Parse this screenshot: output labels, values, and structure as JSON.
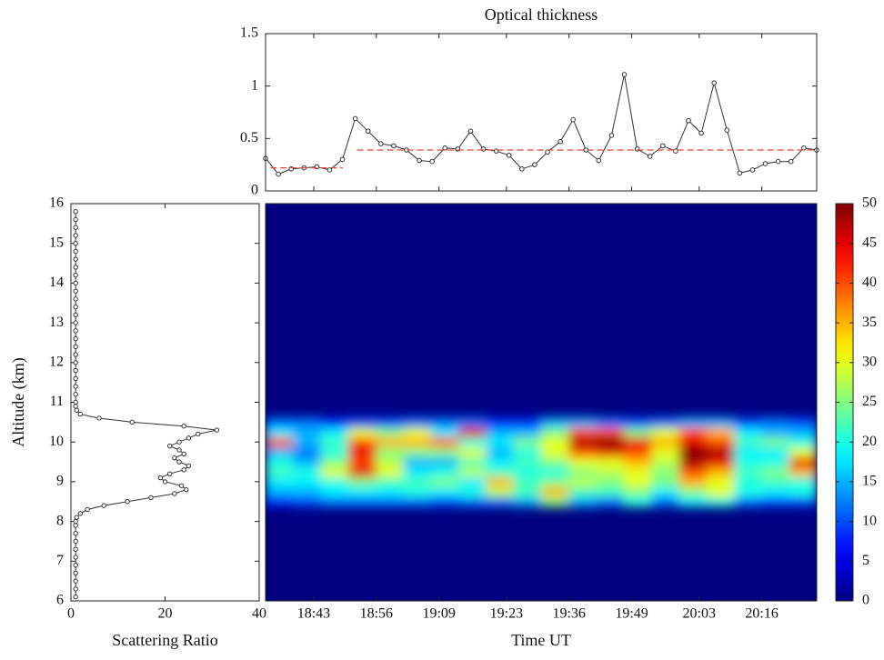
{
  "chart_data": [
    {
      "type": "line",
      "title": "Optical thickness",
      "x": [
        1113,
        1115.66,
        1118.32,
        1120.98,
        1123.64,
        1126.3,
        1128.96,
        1131.62,
        1134.28,
        1136.94,
        1139.6,
        1142.26,
        1144.92,
        1147.58,
        1150.24,
        1152.9,
        1155.56,
        1158.22,
        1160.88,
        1163.54,
        1166.2,
        1168.86,
        1171.52,
        1174.18,
        1176.84,
        1179.5,
        1182.16,
        1184.82,
        1187.48,
        1190.14,
        1192.8,
        1195.46,
        1198.12,
        1200.78,
        1203.44,
        1206.1,
        1208.76,
        1211.42,
        1214.08,
        1216.74,
        1219.4,
        1222.06,
        1224.72,
        1227.38
      ],
      "series": [
        {
          "color": "#333333",
          "marker": "circle",
          "values": [
            0.31,
            0.16,
            0.21,
            0.22,
            0.23,
            0.2,
            0.3,
            0.69,
            0.57,
            0.45,
            0.43,
            0.39,
            0.29,
            0.28,
            0.41,
            0.4,
            0.57,
            0.4,
            0.38,
            0.34,
            0.21,
            0.25,
            0.37,
            0.47,
            0.68,
            0.39,
            0.29,
            0.53,
            1.11,
            0.4,
            0.33,
            0.43,
            0.38,
            0.67,
            0.55,
            1.03,
            0.58,
            0.17,
            0.2,
            0.26,
            0.28,
            0.28,
            0.41,
            0.39
          ]
        },
        {
          "color": "#e8443a",
          "style": "dashed",
          "x": [
            1114,
            1129
          ],
          "values": [
            0.22,
            0.22
          ]
        },
        {
          "color": "#e8443a",
          "style": "dashed",
          "x": [
            1132,
            1227.4
          ],
          "values": [
            0.39,
            0.39
          ]
        }
      ],
      "xlim": [
        1113,
        1227.4
      ],
      "xticks": [
        1123,
        1136,
        1149,
        1163,
        1176,
        1189,
        1203,
        1216
      ],
      "ylim": [
        0,
        1.5
      ],
      "yticks": [
        0,
        0.5,
        1,
        1.5
      ]
    },
    {
      "type": "profile",
      "xlabel": "Scattering Ratio",
      "ylabel": "Altitude (km)",
      "color": "#333333",
      "y": [
        6.1,
        6.3,
        6.5,
        6.7,
        6.9,
        7.1,
        7.3,
        7.5,
        7.7,
        7.9,
        8.0,
        8.1,
        8.2,
        8.3,
        8.4,
        8.5,
        8.6,
        8.7,
        8.8,
        8.9,
        9.0,
        9.1,
        9.2,
        9.3,
        9.4,
        9.5,
        9.6,
        9.7,
        9.8,
        9.9,
        10.0,
        10.1,
        10.2,
        10.3,
        10.4,
        10.5,
        10.6,
        10.7,
        10.8,
        10.9,
        11.0,
        11.2,
        11.4,
        11.6,
        11.8,
        12.0,
        12.2,
        12.4,
        12.6,
        12.8,
        13.0,
        13.2,
        13.4,
        13.6,
        13.8,
        14.0,
        14.2,
        14.4,
        14.6,
        14.8,
        15.0,
        15.2,
        15.4,
        15.6,
        15.8
      ],
      "values": [
        1,
        1,
        1,
        1,
        1,
        1,
        1,
        1,
        1,
        1,
        1,
        1.2,
        2,
        3.5,
        7,
        12,
        17,
        22,
        24.5,
        23.5,
        20,
        19,
        21,
        24,
        25,
        23,
        22,
        24,
        23,
        21,
        23,
        25,
        27,
        31,
        24,
        13,
        6,
        2,
        1.2,
        1,
        1,
        1,
        1,
        1,
        1,
        1,
        1,
        1,
        1,
        1,
        1,
        1,
        1,
        1,
        1,
        1,
        1,
        1,
        1,
        1,
        1,
        1,
        1,
        1,
        1
      ],
      "xlim": [
        0,
        40
      ],
      "xticks": [
        0,
        20,
        40
      ],
      "ylim": [
        6,
        16
      ],
      "yticks": [
        6,
        7,
        8,
        9,
        10,
        11,
        12,
        13,
        14,
        15,
        16
      ]
    },
    {
      "type": "heatmap",
      "xlabel": "Time UT",
      "colormap": "jet",
      "x": [
        1115.86,
        1121.58,
        1127.3,
        1133.02,
        1138.74,
        1144.46,
        1150.18,
        1155.9,
        1161.62,
        1167.34,
        1173.06,
        1178.78,
        1184.5,
        1190.22,
        1195.94,
        1201.66,
        1207.38,
        1213.1,
        1218.82,
        1224.54
      ],
      "y": [
        8.5,
        8.75,
        9.0,
        9.25,
        9.5,
        9.75,
        10.0,
        10.25,
        10.5
      ],
      "values": [
        [
          8,
          10,
          12,
          12,
          12,
          12,
          10,
          12,
          12,
          15,
          25,
          15,
          12,
          20,
          12,
          18,
          20,
          12,
          10,
          10
        ],
        [
          15,
          15,
          18,
          18,
          18,
          20,
          18,
          20,
          28,
          22,
          35,
          22,
          22,
          25,
          18,
          25,
          30,
          20,
          18,
          20
        ],
        [
          18,
          18,
          20,
          25,
          22,
          22,
          25,
          18,
          35,
          22,
          25,
          28,
          25,
          30,
          25,
          35,
          30,
          20,
          22,
          20
        ],
        [
          22,
          20,
          30,
          45,
          30,
          18,
          20,
          28,
          22,
          20,
          20,
          25,
          28,
          30,
          25,
          40,
          35,
          22,
          25,
          35
        ],
        [
          20,
          15,
          25,
          40,
          28,
          15,
          15,
          22,
          18,
          22,
          25,
          30,
          30,
          35,
          28,
          48,
          45,
          20,
          20,
          45
        ],
        [
          15,
          12,
          20,
          45,
          25,
          25,
          25,
          30,
          15,
          20,
          30,
          40,
          45,
          40,
          30,
          50,
          48,
          18,
          18,
          30
        ],
        [
          40,
          15,
          22,
          40,
          35,
          35,
          40,
          20,
          18,
          25,
          30,
          48,
          50,
          45,
          35,
          45,
          40,
          22,
          25,
          20
        ],
        [
          18,
          15,
          18,
          30,
          25,
          30,
          18,
          45,
          15,
          15,
          25,
          40,
          40,
          25,
          30,
          40,
          35,
          18,
          15,
          15
        ],
        [
          12,
          12,
          8,
          10,
          10,
          12,
          12,
          12,
          8,
          8,
          15,
          15,
          12,
          10,
          12,
          15,
          15,
          10,
          12,
          10
        ]
      ],
      "xlim": [
        1113,
        1227.4
      ],
      "xticks": [
        {
          "value": 1123,
          "label": "18:43"
        },
        {
          "value": 1136,
          "label": "18:56"
        },
        {
          "value": 1149,
          "label": "19:09"
        },
        {
          "value": 1163,
          "label": "19:23"
        },
        {
          "value": 1176,
          "label": "19:36"
        },
        {
          "value": 1189,
          "label": "19:49"
        },
        {
          "value": 1203,
          "label": "20:03"
        },
        {
          "value": 1216,
          "label": "20:16"
        }
      ],
      "ylim": [
        6,
        16
      ],
      "clim": [
        0,
        50
      ],
      "colorbar_ticks": [
        0,
        5,
        10,
        15,
        20,
        25,
        30,
        35,
        40,
        45,
        50
      ]
    }
  ]
}
